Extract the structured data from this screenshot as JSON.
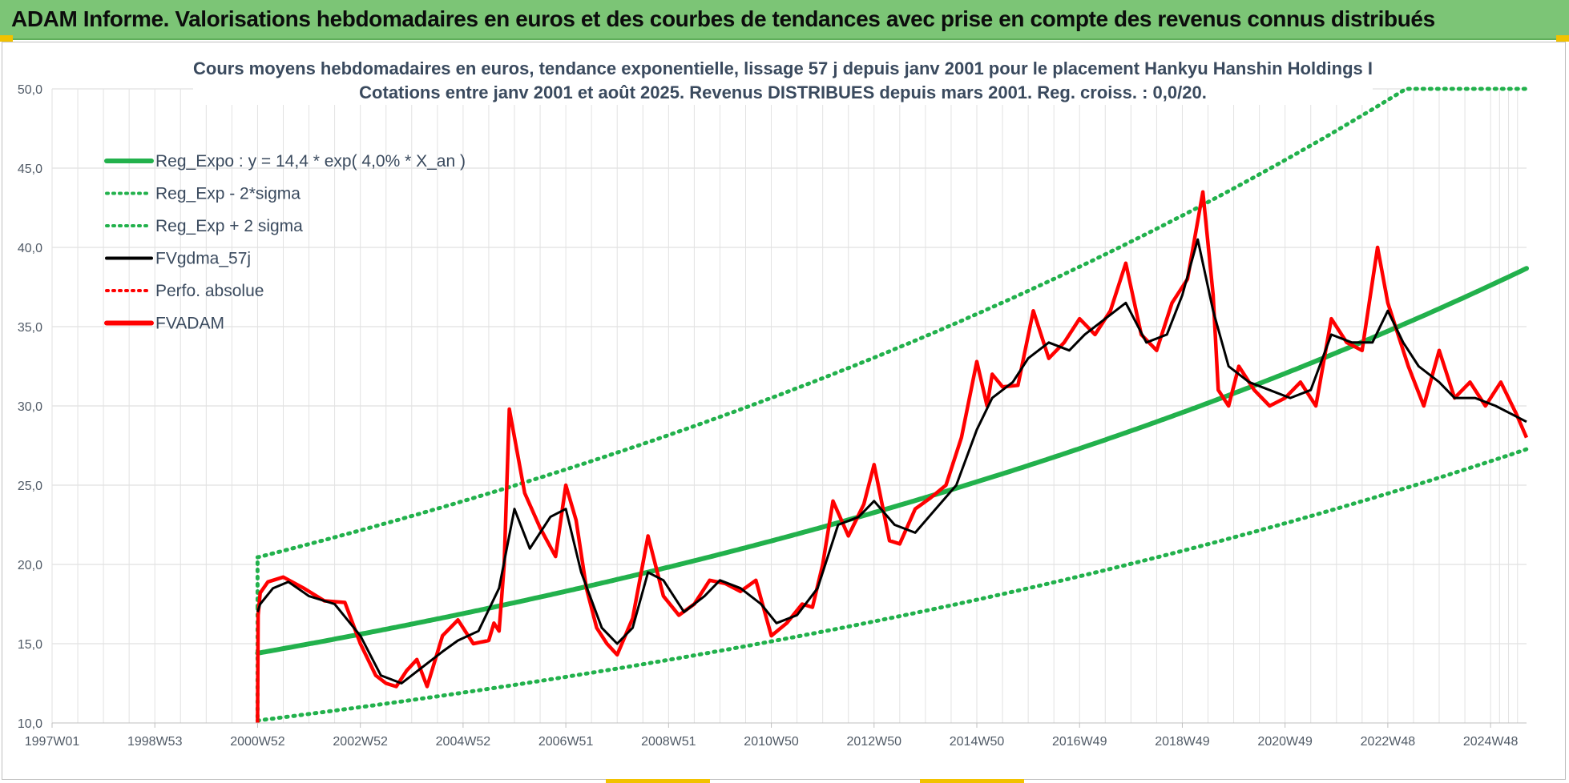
{
  "banner": {
    "title": "ADAM Informe. Valorisations hebdomadaires en euros et des courbes de tendances avec prise en compte des revenus connus distribués"
  },
  "colors": {
    "banner": "#7cc576",
    "trend": "#22b14c",
    "fvadam": "#ff0000",
    "gdma": "#000000"
  },
  "chart_data": {
    "type": "line",
    "title": "Cours moyens hebdomadaires en euros, tendance exponentielle, lissage 57 j depuis janv 2001 pour le placement Hankyu Hanshin Holdings I",
    "subtitle": "Cotations entre janv 2001 et août 2025. Revenus DISTRIBUES depuis mars 2001. Reg. croiss. : 0,0/20.",
    "xlabel": "",
    "ylabel": "",
    "x_tick_labels": [
      "1997W01",
      "1998W53",
      "2000W52",
      "2002W52",
      "2004W52",
      "2006W51",
      "2008W51",
      "2010W50",
      "2012W50",
      "2014W50",
      "2016W49",
      "2018W49",
      "2020W49",
      "2022W48",
      "2024W48"
    ],
    "x_tick_years": [
      1997.0,
      1999.0,
      2001.0,
      2003.0,
      2005.0,
      2007.0,
      2009.0,
      2011.0,
      2013.0,
      2015.0,
      2017.0,
      2019.0,
      2021.0,
      2023.0,
      2025.0
    ],
    "x_range": [
      1997.0,
      2025.7
    ],
    "ylim": [
      10,
      50
    ],
    "y_ticks": [
      "10,0",
      "15,0",
      "20,0",
      "25,0",
      "30,0",
      "35,0",
      "40,0",
      "45,0",
      "50,0"
    ],
    "grid": true,
    "legend_position": "top-left",
    "legend": [
      {
        "label": "Reg_Expo : y = 14,4 * exp( 4,0% *  X_an )",
        "style": "solid-thick",
        "color": "#22b14c"
      },
      {
        "label": "Reg_Exp - 2*sigma",
        "style": "dotted",
        "color": "#22b14c"
      },
      {
        "label": "Reg_Exp + 2 sigma",
        "style": "dotted",
        "color": "#22b14c"
      },
      {
        "label": "FVgdma_57j",
        "style": "solid",
        "color": "#000000"
      },
      {
        "label": "Perfo. absolue",
        "style": "dotted",
        "color": "#ff0000"
      },
      {
        "label": "FVADAM",
        "style": "solid-thick",
        "color": "#ff0000"
      }
    ],
    "regression": {
      "a": 14.4,
      "rate": 0.04,
      "start_year": 2001.0,
      "end_year": 2025.7,
      "lower_factor": 0.705,
      "upper_factor": 1.42,
      "ymax_clip": 50
    },
    "series": [
      {
        "name": "FVADAM",
        "x": [
          2001.0,
          2001.01,
          2001.05,
          2001.2,
          2001.5,
          2001.9,
          2002.3,
          2002.7,
          2003.0,
          2003.3,
          2003.5,
          2003.7,
          2003.9,
          2004.1,
          2004.3,
          2004.6,
          2004.9,
          2005.2,
          2005.5,
          2005.6,
          2005.7,
          2005.8,
          2005.9,
          2006.2,
          2006.5,
          2006.8,
          2007.0,
          2007.2,
          2007.4,
          2007.6,
          2007.8,
          2008.0,
          2008.3,
          2008.6,
          2008.9,
          2009.2,
          2009.5,
          2009.8,
          2010.1,
          2010.4,
          2010.7,
          2011.0,
          2011.3,
          2011.6,
          2011.8,
          2012.0,
          2012.2,
          2012.5,
          2012.8,
          2013.0,
          2013.3,
          2013.5,
          2013.8,
          2014.1,
          2014.4,
          2014.7,
          2015.0,
          2015.2,
          2015.3,
          2015.5,
          2015.8,
          2016.1,
          2016.4,
          2016.7,
          2017.0,
          2017.3,
          2017.6,
          2017.9,
          2018.2,
          2018.5,
          2018.8,
          2019.1,
          2019.4,
          2019.6,
          2019.7,
          2019.9,
          2020.1,
          2020.4,
          2020.7,
          2021.0,
          2021.3,
          2021.6,
          2021.9,
          2022.2,
          2022.5,
          2022.8,
          2023.0,
          2023.2,
          2023.4,
          2023.7,
          2024.0,
          2024.3,
          2024.6,
          2024.9,
          2025.2,
          2025.5,
          2025.7
        ],
        "values": [
          10.0,
          16.8,
          18.2,
          18.9,
          19.2,
          18.5,
          17.7,
          17.6,
          15.0,
          13.0,
          12.5,
          12.3,
          13.3,
          14.0,
          12.3,
          15.5,
          16.5,
          15.0,
          15.2,
          16.3,
          15.8,
          20.0,
          29.8,
          24.5,
          22.3,
          20.5,
          25.0,
          22.8,
          18.5,
          16.0,
          15.0,
          14.3,
          16.6,
          21.8,
          18.0,
          16.8,
          17.5,
          19.0,
          18.8,
          18.3,
          19.0,
          15.5,
          16.3,
          17.5,
          17.3,
          20.0,
          24.0,
          21.8,
          23.8,
          26.3,
          21.5,
          21.3,
          23.5,
          24.2,
          25.0,
          28.0,
          32.8,
          30.0,
          32.0,
          31.2,
          31.3,
          36.0,
          33.0,
          34.0,
          35.5,
          34.5,
          36.0,
          39.0,
          34.5,
          33.5,
          36.5,
          38.0,
          43.5,
          37.0,
          31.0,
          30.0,
          32.5,
          31.0,
          30.0,
          30.5,
          31.5,
          30.0,
          35.5,
          34.0,
          33.5,
          40.0,
          36.5,
          34.5,
          32.5,
          30.0,
          33.5,
          30.5,
          31.5,
          30.0,
          31.5,
          29.5,
          28.0
        ]
      },
      {
        "name": "FVgdma_57j",
        "x": [
          2001.0,
          2001.05,
          2001.3,
          2001.6,
          2002.0,
          2002.5,
          2003.0,
          2003.4,
          2003.8,
          2004.2,
          2004.6,
          2004.9,
          2005.3,
          2005.7,
          2006.0,
          2006.3,
          2006.7,
          2007.0,
          2007.3,
          2007.7,
          2008.0,
          2008.3,
          2008.6,
          2008.9,
          2009.3,
          2009.7,
          2010.0,
          2010.4,
          2010.8,
          2011.1,
          2011.5,
          2011.9,
          2012.3,
          2012.7,
          2013.0,
          2013.4,
          2013.8,
          2014.2,
          2014.6,
          2015.0,
          2015.3,
          2015.7,
          2016.0,
          2016.4,
          2016.8,
          2017.1,
          2017.5,
          2017.9,
          2018.3,
          2018.7,
          2019.0,
          2019.3,
          2019.6,
          2019.9,
          2020.3,
          2020.7,
          2021.1,
          2021.5,
          2021.9,
          2022.3,
          2022.7,
          2023.0,
          2023.3,
          2023.6,
          2024.0,
          2024.3,
          2024.7,
          2025.1,
          2025.4,
          2025.7
        ],
        "values": [
          17.0,
          17.5,
          18.5,
          18.9,
          18.0,
          17.5,
          15.5,
          13.0,
          12.5,
          13.5,
          14.5,
          15.2,
          15.8,
          18.5,
          23.5,
          21.0,
          23.0,
          23.5,
          19.5,
          16.0,
          15.0,
          16.0,
          19.5,
          19.0,
          17.0,
          18.0,
          19.0,
          18.5,
          17.5,
          16.3,
          16.8,
          18.5,
          22.5,
          23.0,
          24.0,
          22.5,
          22.0,
          23.5,
          25.0,
          28.5,
          30.5,
          31.5,
          33.0,
          34.0,
          33.5,
          34.5,
          35.5,
          36.5,
          34.0,
          34.5,
          37.0,
          40.5,
          36.0,
          32.5,
          31.5,
          31.0,
          30.5,
          31.0,
          34.5,
          34.0,
          34.0,
          36.0,
          34.0,
          32.5,
          31.5,
          30.5,
          30.5,
          30.0,
          29.5,
          29.0
        ]
      }
    ]
  }
}
